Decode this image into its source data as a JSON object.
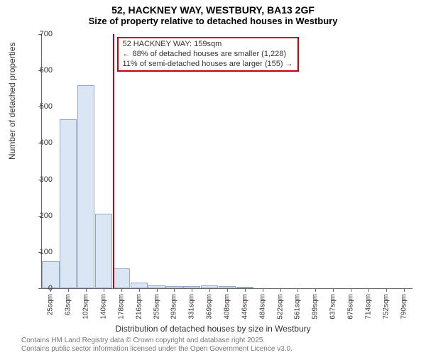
{
  "title": "52, HACKNEY WAY, WESTBURY, BA13 2GF",
  "subtitle": "Size of property relative to detached houses in Westbury",
  "chart": {
    "type": "bar",
    "ylabel": "Number of detached properties",
    "xlabel": "Distribution of detached houses by size in Westbury",
    "ylim": [
      0,
      700
    ],
    "ytick_step": 100,
    "yticks": [
      0,
      100,
      200,
      300,
      400,
      500,
      600,
      700
    ],
    "categories": [
      "25sqm",
      "63sqm",
      "102sqm",
      "140sqm",
      "178sqm",
      "216sqm",
      "255sqm",
      "293sqm",
      "331sqm",
      "369sqm",
      "408sqm",
      "446sqm",
      "484sqm",
      "522sqm",
      "561sqm",
      "599sqm",
      "637sqm",
      "675sqm",
      "714sqm",
      "752sqm",
      "790sqm"
    ],
    "values": [
      75,
      465,
      560,
      205,
      55,
      15,
      8,
      5,
      5,
      8,
      5,
      3,
      0,
      0,
      0,
      0,
      0,
      0,
      0,
      0,
      0
    ],
    "bar_fill": "#dbe6f4",
    "bar_stroke": "#92a8c9",
    "background_color": "#ffffff",
    "axis_color": "#666666",
    "marker": {
      "position_sqm": 159,
      "color": "#cc0000"
    },
    "annotation": {
      "line1": "52 HACKNEY WAY: 159sqm",
      "line2": "← 88% of detached houses are smaller (1,228)",
      "line3": "11% of semi-detached houses are larger (155) →",
      "border_color": "#cc0000"
    }
  },
  "footer": {
    "line1": "Contains HM Land Registry data © Crown copyright and database right 2025.",
    "line2": "Contains public sector information licensed under the Open Government Licence v3.0."
  }
}
